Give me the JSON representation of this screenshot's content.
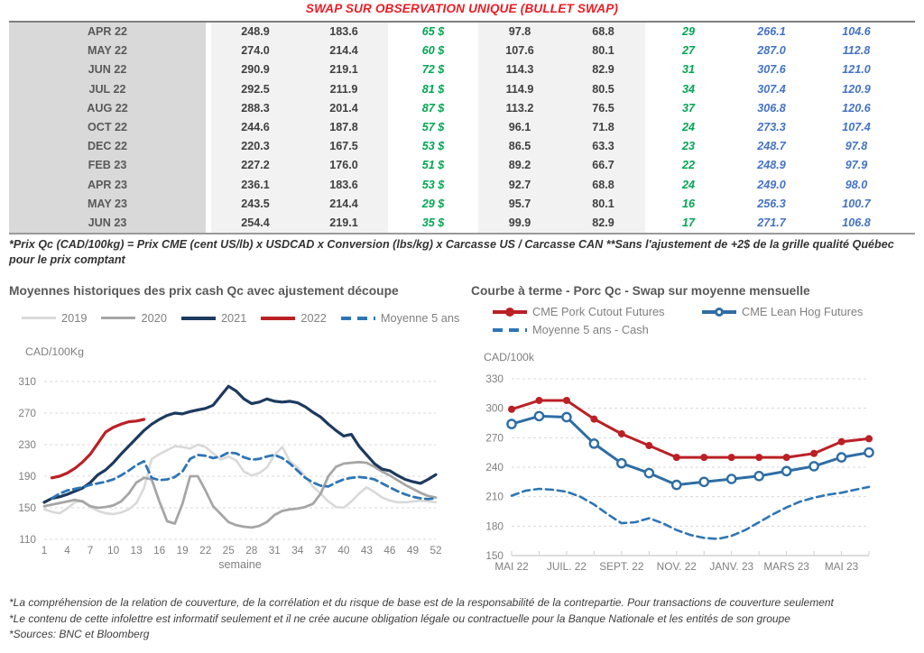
{
  "title": "SWAP SUR OBSERVATION UNIQUE (BULLET SWAP)",
  "table": {
    "rows": [
      {
        "month": "APR 22",
        "c1": "248.9",
        "c2": "183.6",
        "c3": "65 $",
        "c4": "97.8",
        "c5": "68.8",
        "c6": "29",
        "c7": "266.1",
        "c8": "104.6"
      },
      {
        "month": "MAY 22",
        "c1": "274.0",
        "c2": "214.4",
        "c3": "60 $",
        "c4": "107.6",
        "c5": "80.1",
        "c6": "27",
        "c7": "287.0",
        "c8": "112.8"
      },
      {
        "month": "JUN 22",
        "c1": "290.9",
        "c2": "219.1",
        "c3": "72 $",
        "c4": "114.3",
        "c5": "82.9",
        "c6": "31",
        "c7": "307.6",
        "c8": "121.0"
      },
      {
        "month": "JUL 22",
        "c1": "292.5",
        "c2": "211.9",
        "c3": "81 $",
        "c4": "114.9",
        "c5": "80.5",
        "c6": "34",
        "c7": "307.4",
        "c8": "120.9"
      },
      {
        "month": "AUG 22",
        "c1": "288.3",
        "c2": "201.4",
        "c3": "87 $",
        "c4": "113.2",
        "c5": "76.5",
        "c6": "37",
        "c7": "306.8",
        "c8": "120.6"
      },
      {
        "month": "OCT 22",
        "c1": "244.6",
        "c2": "187.8",
        "c3": "57 $",
        "c4": "96.1",
        "c5": "71.8",
        "c6": "24",
        "c7": "273.3",
        "c8": "107.4"
      },
      {
        "month": "DEC 22",
        "c1": "220.3",
        "c2": "167.5",
        "c3": "53 $",
        "c4": "86.5",
        "c5": "63.3",
        "c6": "23",
        "c7": "248.7",
        "c8": "97.8"
      },
      {
        "month": "FEB 23",
        "c1": "227.2",
        "c2": "176.0",
        "c3": "51 $",
        "c4": "89.2",
        "c5": "66.7",
        "c6": "22",
        "c7": "248.9",
        "c8": "97.9"
      },
      {
        "month": "APR 23",
        "c1": "236.1",
        "c2": "183.6",
        "c3": "53 $",
        "c4": "92.7",
        "c5": "68.8",
        "c6": "24",
        "c7": "249.0",
        "c8": "98.0"
      },
      {
        "month": "MAY 23",
        "c1": "243.5",
        "c2": "214.4",
        "c3": "29 $",
        "c4": "95.7",
        "c5": "80.1",
        "c6": "16",
        "c7": "256.3",
        "c8": "100.7"
      },
      {
        "month": "JUN 23",
        "c1": "254.4",
        "c2": "219.1",
        "c3": "35 $",
        "c4": "99.9",
        "c5": "82.9",
        "c6": "17",
        "c7": "271.7",
        "c8": "106.8"
      }
    ],
    "footnote": "*Prix Qc (CAD/100kg) = Prix CME (cent US/lb) x USDCAD x Conversion (lbs/kg) x Carcasse US / Carcasse CAN **Sans l'ajustement de +2$ de la grille qualité Québec pour le prix comptant"
  },
  "colors": {
    "title_red": "#ec1c24",
    "series_2019": "#d9d9d9",
    "series_2020": "#a6a6a6",
    "series_2021": "#1c3a5e",
    "series_2022": "#bb2025",
    "series_avg": "#2e75b6",
    "series_leanhog": "#2e6da4",
    "table_green": "#00a651",
    "table_blue": "#4472c4"
  },
  "chart_data": [
    {
      "type": "line",
      "title": "Moyennes historiques des prix cash Qc avec ajustement découpe",
      "ylabel": "CAD/100Kg",
      "xlabel": "semaine",
      "x_range": [
        1,
        52
      ],
      "y_range": [
        110,
        310
      ],
      "yticks": [
        110,
        150,
        190,
        230,
        270,
        310
      ],
      "xticks": [
        1,
        4,
        7,
        10,
        13,
        16,
        19,
        22,
        25,
        28,
        31,
        34,
        37,
        40,
        43,
        46,
        49,
        52
      ],
      "grid": "dashed-horizontal",
      "legend_position": "top",
      "series": [
        {
          "name": "2019",
          "color": "#d9d9d9",
          "width": 2.6,
          "values": [
            148,
            145,
            143,
            149,
            157,
            159,
            151,
            146,
            143,
            142,
            144,
            148,
            156,
            175,
            212,
            218,
            223,
            228,
            227,
            225,
            230,
            227,
            219,
            211,
            215,
            210,
            196,
            191,
            194,
            201,
            217,
            227,
            209,
            201,
            190,
            177,
            168,
            158,
            151,
            150,
            158,
            168,
            176,
            170,
            163,
            159,
            157,
            157,
            158,
            159,
            158,
            157
          ]
        },
        {
          "name": "2020",
          "color": "#a6a6a6",
          "width": 2.8,
          "values": [
            152,
            154,
            156,
            158,
            160,
            158,
            152,
            150,
            151,
            153,
            158,
            168,
            182,
            188,
            186,
            158,
            133,
            130,
            155,
            190,
            190,
            172,
            152,
            142,
            132,
            128,
            126,
            125,
            127,
            132,
            141,
            146,
            148,
            149,
            151,
            155,
            168,
            190,
            202,
            206,
            207,
            208,
            207,
            202,
            196,
            191,
            185,
            179,
            174,
            169,
            165,
            163
          ]
        },
        {
          "name": "2021",
          "color": "#1c3a5e",
          "width": 3.2,
          "values": [
            157,
            162,
            164,
            167,
            171,
            175,
            182,
            192,
            198,
            207,
            218,
            228,
            238,
            248,
            256,
            262,
            267,
            270,
            269,
            272,
            274,
            276,
            280,
            292,
            304,
            298,
            288,
            282,
            284,
            288,
            285,
            284,
            285,
            283,
            278,
            271,
            265,
            256,
            248,
            241,
            243,
            228,
            217,
            206,
            199,
            197,
            191,
            186,
            183,
            181,
            186,
            192
          ]
        },
        {
          "name": "2022",
          "color": "#bb2025",
          "width": 3.2,
          "x_start": 2,
          "values": [
            188,
            190,
            194,
            200,
            208,
            218,
            232,
            246,
            252,
            256,
            259,
            260,
            262
          ]
        },
        {
          "name": "Moyenne 5 ans",
          "color": "#2e75b6",
          "width": 2.8,
          "dash": true,
          "x_start": 2,
          "values": [
            162,
            168,
            172,
            174,
            176,
            179,
            181,
            183,
            186,
            191,
            197,
            204,
            209,
            188,
            185,
            186,
            189,
            196,
            212,
            217,
            216,
            213,
            215,
            220,
            219,
            214,
            211,
            212,
            215,
            217,
            213,
            206,
            197,
            188,
            182,
            178,
            177,
            182,
            186,
            188,
            189,
            188,
            186,
            181,
            176,
            171,
            167,
            164,
            162,
            161,
            162
          ]
        }
      ]
    },
    {
      "type": "line",
      "title": "Courbe à terme - Porc Qc - Swap sur moyenne mensuelle",
      "ylabel": "CAD/100k",
      "xlabel": "",
      "x_range": [
        0,
        13
      ],
      "y_range": [
        150,
        330
      ],
      "yticks": [
        150,
        180,
        210,
        240,
        270,
        300,
        330
      ],
      "xticks": [
        {
          "pos": 0,
          "label": "MAI 22"
        },
        {
          "pos": 2,
          "label": "JUIL. 22"
        },
        {
          "pos": 4,
          "label": "SEPT. 22"
        },
        {
          "pos": 6,
          "label": "NOV. 22"
        },
        {
          "pos": 8,
          "label": "JANV. 23"
        },
        {
          "pos": 10,
          "label": "MARS 23"
        },
        {
          "pos": 12,
          "label": "MAI 23"
        }
      ],
      "grid": "dashed-horizontal",
      "legend_position": "top",
      "series": [
        {
          "name": "CME Pork Cutout Futures",
          "color": "#bb2025",
          "width": 3,
          "marker": "dot",
          "values": [
            299,
            308,
            308,
            289,
            274,
            262,
            250,
            250,
            250,
            250,
            250,
            254,
            266,
            269
          ]
        },
        {
          "name": "CME Lean Hog Futures",
          "color": "#2e6da4",
          "width": 3,
          "marker": "circle",
          "values": [
            284,
            292,
            291,
            264,
            244,
            234,
            222,
            225,
            228,
            231,
            236,
            241,
            250,
            255
          ]
        },
        {
          "name": "Moyenne 5 ans - Cash",
          "color": "#2e75b6",
          "width": 2.6,
          "dash": true,
          "x_step": 0.5,
          "values": [
            211,
            216,
            218,
            217,
            215,
            210,
            202,
            192,
            183,
            184,
            188,
            183,
            176,
            171,
            168,
            167,
            170,
            176,
            184,
            192,
            199,
            205,
            209,
            212,
            214,
            217,
            220
          ]
        }
      ]
    }
  ],
  "footer": {
    "line1": "*La compréhension de la relation de couverture, de la corrélation et du risque de base est de la responsabilité de la contrepartie. Pour transactions de couverture seulement",
    "line2": "*Le contenu de cette infolettre est informatif seulement et il ne crée aucune obligation légale ou contractuelle pour la Banque Nationale et les entités de son groupe",
    "line3": "*Sources: BNC et Bloomberg"
  }
}
